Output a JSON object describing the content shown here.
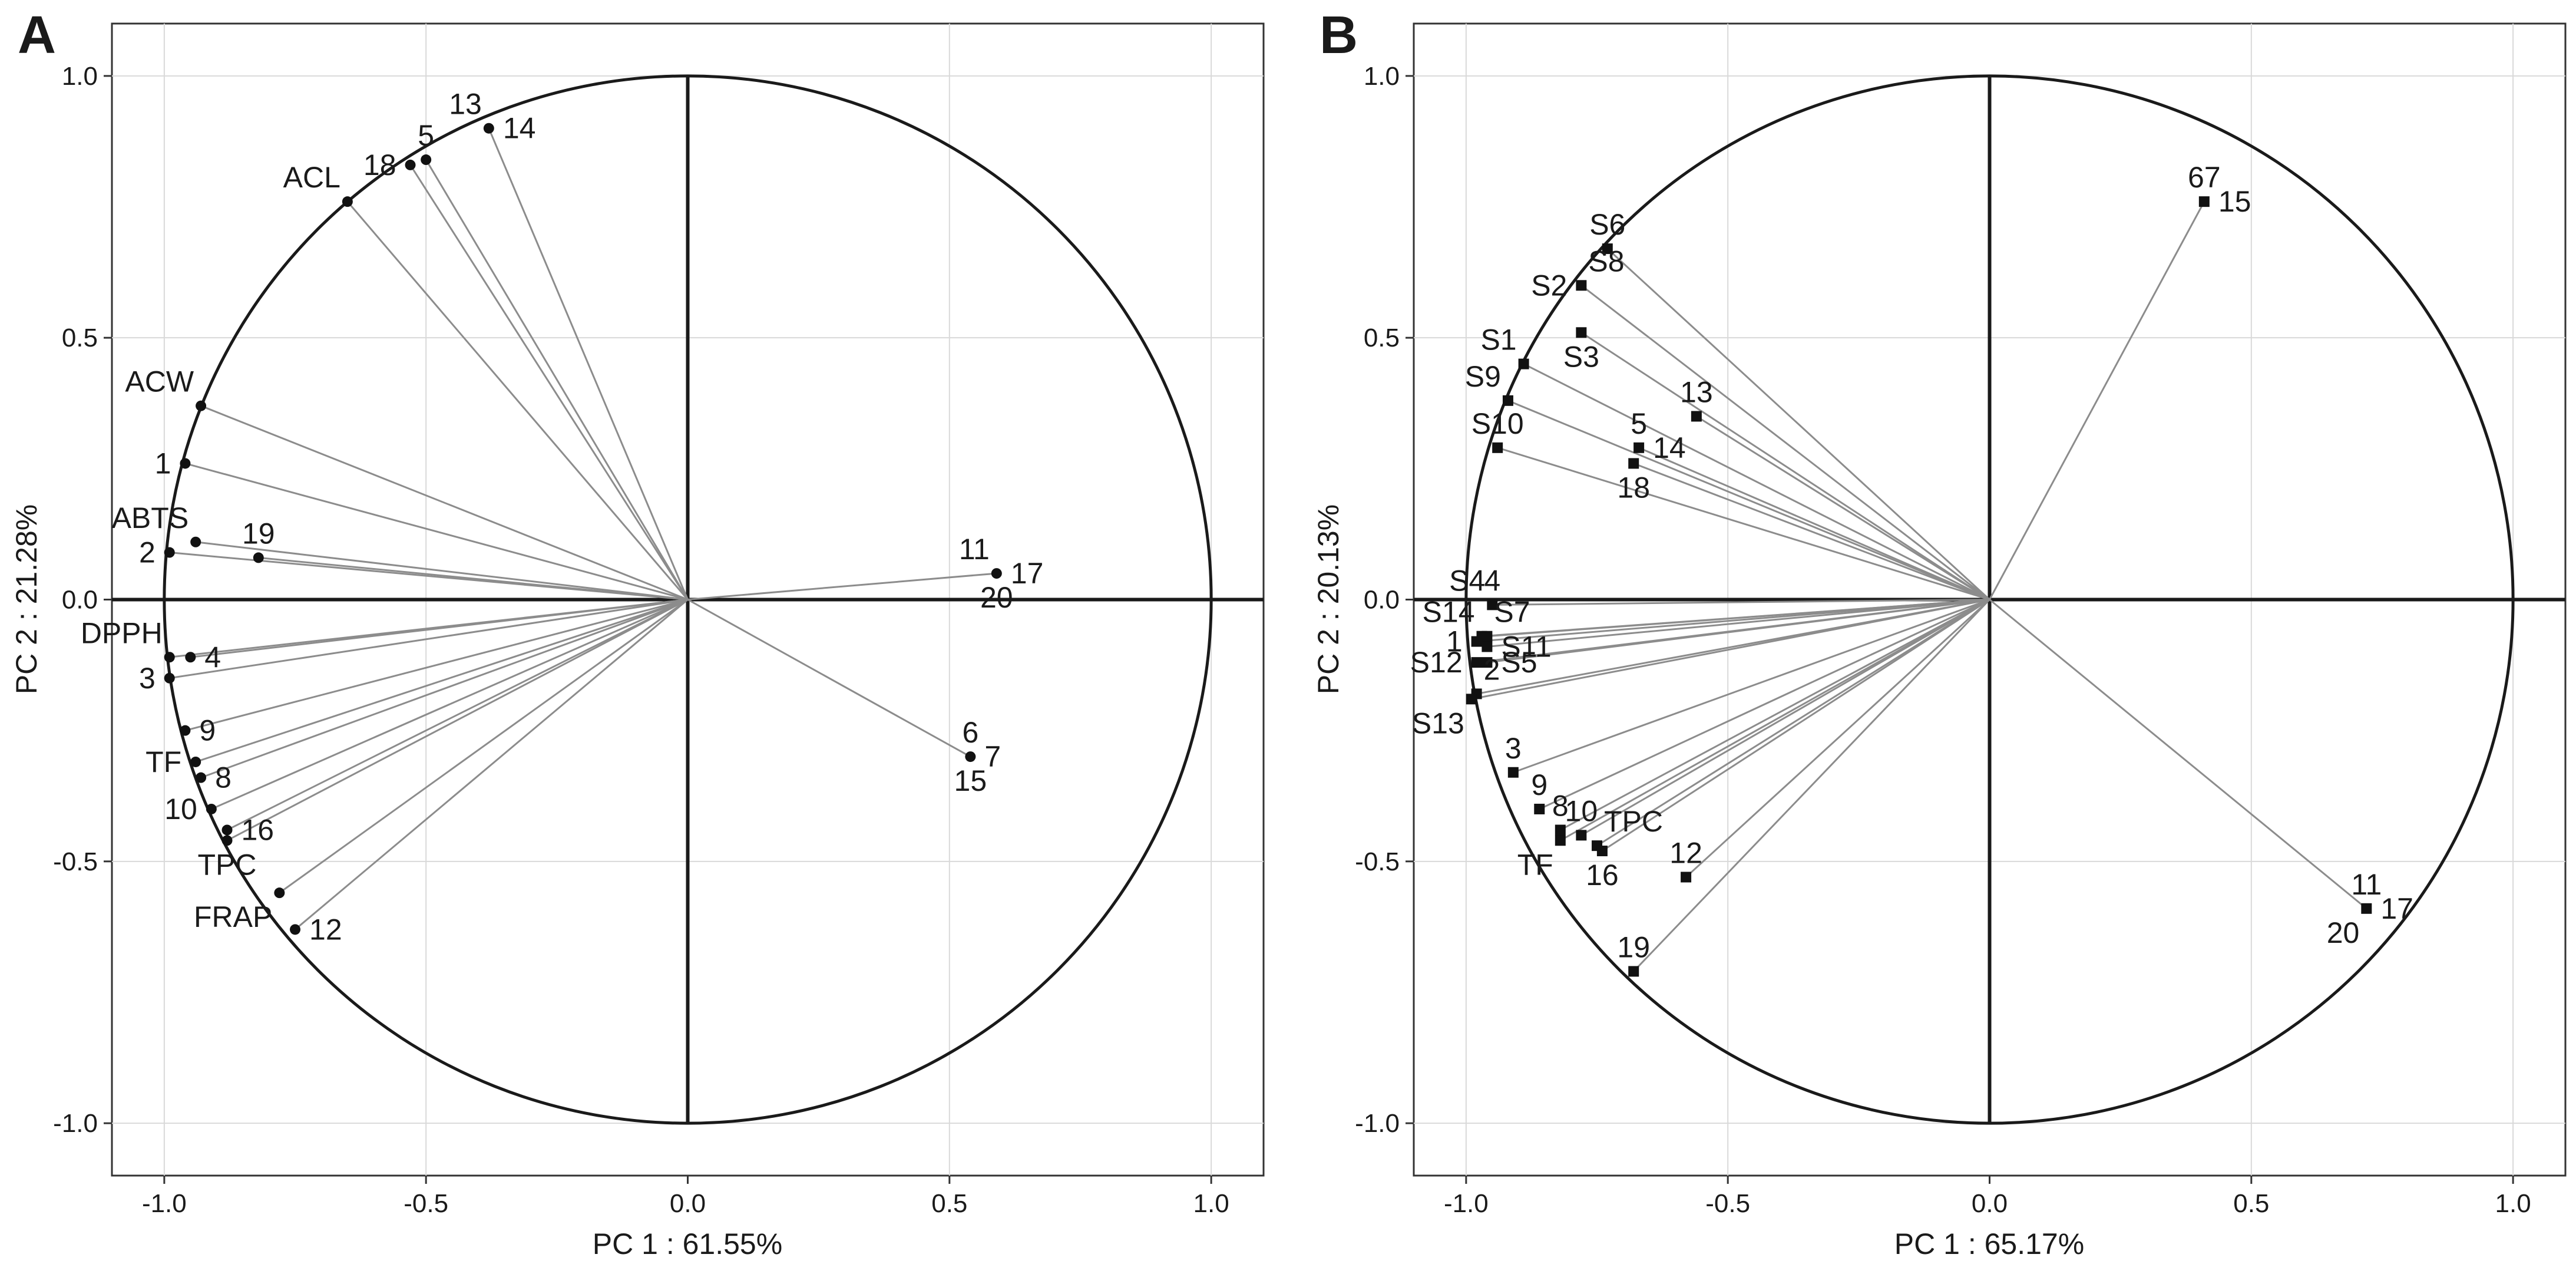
{
  "chart_data": [
    {
      "type": "scatter",
      "subtype": "pca-loading-plot",
      "panel_letter": "A",
      "xlabel": "PC 1 : 61.55%",
      "ylabel": "PC 2 : 21.28%",
      "xlim": [
        -1.1,
        1.1
      ],
      "ylim": [
        -1.1,
        1.1
      ],
      "xticks": [
        "-1.0",
        "-0.5",
        "0.0",
        "0.5",
        "1.0"
      ],
      "yticks": [
        "-1.0",
        "-0.5",
        "0.0",
        "0.5",
        "1.0"
      ],
      "grid": true,
      "unit_circle": true,
      "marker": "circle",
      "points": [
        {
          "label": "13",
          "x": -0.38,
          "y": 0.9,
          "pos": "ul"
        },
        {
          "label": "14",
          "x": -0.38,
          "y": 0.9,
          "pos": "r"
        },
        {
          "label": "18",
          "x": -0.53,
          "y": 0.83,
          "pos": "l"
        },
        {
          "label": "5",
          "x": -0.5,
          "y": 0.84,
          "pos": "u"
        },
        {
          "label": "ACL",
          "x": -0.65,
          "y": 0.76,
          "pos": "ul"
        },
        {
          "label": "ACW",
          "x": -0.93,
          "y": 0.37,
          "pos": "ul"
        },
        {
          "label": "1",
          "x": -0.96,
          "y": 0.26,
          "pos": "l"
        },
        {
          "label": "ABTS",
          "x": -0.94,
          "y": 0.11,
          "pos": "ul"
        },
        {
          "label": "2",
          "x": -0.99,
          "y": 0.09,
          "pos": "l"
        },
        {
          "label": "19",
          "x": -0.82,
          "y": 0.08,
          "pos": "u"
        },
        {
          "label": "11",
          "x": 0.59,
          "y": 0.05,
          "pos": "ul"
        },
        {
          "label": "17",
          "x": 0.59,
          "y": 0.05,
          "pos": "r"
        },
        {
          "label": "20",
          "x": 0.59,
          "y": 0.05,
          "pos": "d"
        },
        {
          "label": "DPPH",
          "x": -0.99,
          "y": -0.11,
          "pos": "ul"
        },
        {
          "label": "4",
          "x": -0.95,
          "y": -0.11,
          "pos": "r"
        },
        {
          "label": "3",
          "x": -0.99,
          "y": -0.15,
          "pos": "l"
        },
        {
          "label": "9",
          "x": -0.96,
          "y": -0.25,
          "pos": "r"
        },
        {
          "label": "TF",
          "x": -0.94,
          "y": -0.31,
          "pos": "l"
        },
        {
          "label": "8",
          "x": -0.93,
          "y": -0.34,
          "pos": "r"
        },
        {
          "label": "10",
          "x": -0.91,
          "y": -0.4,
          "pos": "l"
        },
        {
          "label": "16",
          "x": -0.88,
          "y": -0.44,
          "pos": "r"
        },
        {
          "label": "TPC",
          "x": -0.88,
          "y": -0.46,
          "pos": "d"
        },
        {
          "label": "6",
          "x": 0.54,
          "y": -0.3,
          "pos": "u"
        },
        {
          "label": "7",
          "x": 0.54,
          "y": -0.3,
          "pos": "r"
        },
        {
          "label": "15",
          "x": 0.54,
          "y": -0.3,
          "pos": "d"
        },
        {
          "label": "FRAP",
          "x": -0.78,
          "y": -0.56,
          "pos": "dl"
        },
        {
          "label": "12",
          "x": -0.75,
          "y": -0.63,
          "pos": "r"
        }
      ]
    },
    {
      "type": "scatter",
      "subtype": "pca-loading-plot",
      "panel_letter": "B",
      "xlabel": "PC 1 : 65.17%",
      "ylabel": "PC 2 : 20.13%",
      "xlim": [
        -1.1,
        1.1
      ],
      "ylim": [
        -1.1,
        1.1
      ],
      "xticks": [
        "-1.0",
        "-0.5",
        "0.0",
        "0.5",
        "1.0"
      ],
      "yticks": [
        "-1.0",
        "-0.5",
        "0.0",
        "0.5",
        "1.0"
      ],
      "grid": true,
      "unit_circle": true,
      "marker": "square",
      "points": [
        {
          "label": "67",
          "x": 0.41,
          "y": 0.76,
          "pos": "u"
        },
        {
          "label": "15",
          "x": 0.41,
          "y": 0.76,
          "pos": "r"
        },
        {
          "label": "S6",
          "x": -0.73,
          "y": 0.67,
          "pos": "u"
        },
        {
          "label": "S8",
          "x": -0.78,
          "y": 0.6,
          "pos": "ur"
        },
        {
          "label": "S2",
          "x": -0.78,
          "y": 0.6,
          "pos": "l"
        },
        {
          "label": "S3",
          "x": -0.78,
          "y": 0.51,
          "pos": "d"
        },
        {
          "label": "S1",
          "x": -0.89,
          "y": 0.45,
          "pos": "ul"
        },
        {
          "label": "S9",
          "x": -0.92,
          "y": 0.38,
          "pos": "ul"
        },
        {
          "label": "13",
          "x": -0.56,
          "y": 0.35,
          "pos": "u"
        },
        {
          "label": "5",
          "x": -0.67,
          "y": 0.29,
          "pos": "u"
        },
        {
          "label": "14",
          "x": -0.67,
          "y": 0.29,
          "pos": "r"
        },
        {
          "label": "S10",
          "x": -0.94,
          "y": 0.29,
          "pos": "u"
        },
        {
          "label": "18",
          "x": -0.68,
          "y": 0.26,
          "pos": "d"
        },
        {
          "label": "S4",
          "x": -0.95,
          "y": -0.01,
          "pos": "ul"
        },
        {
          "label": "4",
          "x": -0.95,
          "y": -0.01,
          "pos": "u"
        },
        {
          "label": "S14",
          "x": -0.97,
          "y": -0.07,
          "pos": "ul"
        },
        {
          "label": "S7",
          "x": -0.96,
          "y": -0.07,
          "pos": "ur"
        },
        {
          "label": "1",
          "x": -0.98,
          "y": -0.08,
          "pos": "l"
        },
        {
          "label": "S11",
          "x": -0.96,
          "y": -0.09,
          "pos": "r"
        },
        {
          "label": "S12",
          "x": -0.98,
          "y": -0.12,
          "pos": "l"
        },
        {
          "label": "S5",
          "x": -0.96,
          "y": -0.12,
          "pos": "r"
        },
        {
          "label": "2",
          "x": -0.98,
          "y": -0.18,
          "pos": "ur"
        },
        {
          "label": "S13",
          "x": -0.99,
          "y": -0.19,
          "pos": "dl"
        },
        {
          "label": "3",
          "x": -0.91,
          "y": -0.33,
          "pos": "u"
        },
        {
          "label": "9",
          "x": -0.86,
          "y": -0.4,
          "pos": "u"
        },
        {
          "label": "8",
          "x": -0.82,
          "y": -0.44,
          "pos": "u"
        },
        {
          "label": "10",
          "x": -0.78,
          "y": -0.45,
          "pos": "u"
        },
        {
          "label": "TF",
          "x": -0.82,
          "y": -0.46,
          "pos": "dl"
        },
        {
          "label": "TPC",
          "x": -0.75,
          "y": -0.47,
          "pos": "ur"
        },
        {
          "label": "16",
          "x": -0.74,
          "y": -0.48,
          "pos": "d"
        },
        {
          "label": "12",
          "x": -0.58,
          "y": -0.53,
          "pos": "u"
        },
        {
          "label": "19",
          "x": -0.68,
          "y": -0.71,
          "pos": "u"
        },
        {
          "label": "11",
          "x": 0.72,
          "y": -0.59,
          "pos": "u"
        },
        {
          "label": "17",
          "x": 0.72,
          "y": -0.59,
          "pos": "r"
        },
        {
          "label": "20",
          "x": 0.72,
          "y": -0.59,
          "pos": "dl"
        }
      ]
    }
  ]
}
